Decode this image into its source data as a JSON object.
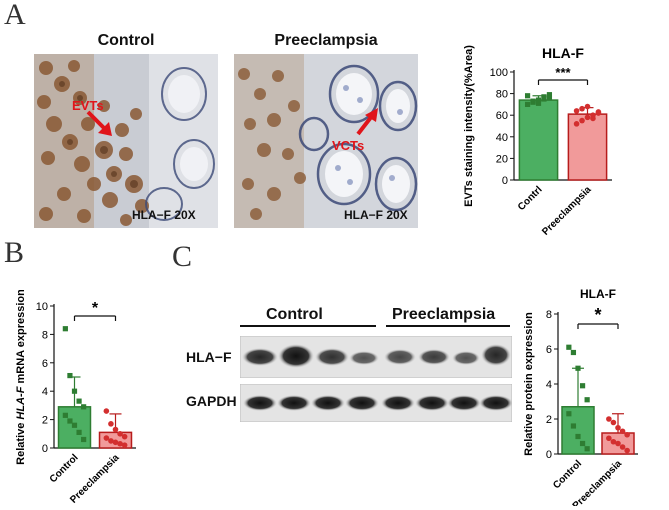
{
  "panels": {
    "a": "A",
    "b": "B",
    "c": "C"
  },
  "panel_a": {
    "control_title": "Control",
    "pre_title": "Preeclampsia",
    "control_scale": "HLA−F 20X",
    "pre_scale": "HLA−F 20X",
    "evt_label": "EVTs",
    "vct_label": "VCTs",
    "arrow_color": "#e0151b",
    "tissue_bg": "#cfd2d8",
    "stain_brown": "#7a4a2a"
  },
  "panel_c": {
    "group_control": "Control",
    "group_pre": "Preeclampsia",
    "row_hla": "HLA−F",
    "row_gapdh": "GAPDH"
  },
  "chart_data": [
    {
      "type": "bar",
      "title": "HLA-F",
      "ylabel": "EVTs staining intensity(%Area)",
      "categories": [
        "Contrl",
        "Preeclampsia"
      ],
      "values": [
        74,
        61
      ],
      "errors": [
        4,
        6
      ],
      "ylim": [
        0,
        100
      ],
      "yticks": [
        0,
        20,
        40,
        60,
        80,
        100
      ],
      "significance": "***",
      "colors": [
        "#4caf62",
        "#f19a9a"
      ],
      "edge_colors": [
        "#2e7d32",
        "#b71c1c"
      ],
      "points": [
        [
          70,
          72,
          74,
          75,
          76,
          78,
          73,
          71,
          77,
          79
        ],
        [
          52,
          55,
          58,
          60,
          62,
          64,
          66,
          68,
          57,
          63
        ]
      ]
    },
    {
      "type": "bar",
      "title": "",
      "ylabel_parts": [
        "Relative ",
        "HLA-F",
        " mRNA expression"
      ],
      "categories": [
        "Control",
        "Preeclampsia"
      ],
      "values": [
        2.9,
        1.1
      ],
      "errors": [
        2.1,
        1.3
      ],
      "ylim": [
        0,
        10
      ],
      "yticks": [
        0,
        2,
        4,
        6,
        8,
        10
      ],
      "significance": "*",
      "colors": [
        "#4caf62",
        "#f19a9a"
      ],
      "edge_colors": [
        "#2e7d32",
        "#b71c1c"
      ],
      "points": [
        [
          8.4,
          5.1,
          4.0,
          3.3,
          2.9,
          2.3,
          1.9,
          1.6,
          1.1,
          0.6
        ],
        [
          2.6,
          1.7,
          1.3,
          1.0,
          0.8,
          0.7,
          0.5,
          0.4,
          0.3,
          0.2
        ]
      ]
    },
    {
      "type": "bar",
      "title": "HLA-F",
      "ylabel": "Relative protein expression",
      "categories": [
        "Control",
        "Preeclampsia"
      ],
      "values": [
        2.7,
        1.2
      ],
      "errors": [
        2.2,
        1.1
      ],
      "ylim": [
        0,
        8
      ],
      "yticks": [
        0,
        2,
        4,
        6,
        8
      ],
      "significance": "*",
      "colors": [
        "#4caf62",
        "#f19a9a"
      ],
      "edge_colors": [
        "#2e7d32",
        "#b71c1c"
      ],
      "points": [
        [
          6.1,
          5.8,
          4.9,
          3.9,
          3.1,
          2.3,
          1.6,
          1.0,
          0.6,
          0.3
        ],
        [
          2.0,
          1.8,
          1.5,
          1.3,
          1.1,
          0.9,
          0.7,
          0.6,
          0.4,
          0.2
        ]
      ]
    }
  ]
}
